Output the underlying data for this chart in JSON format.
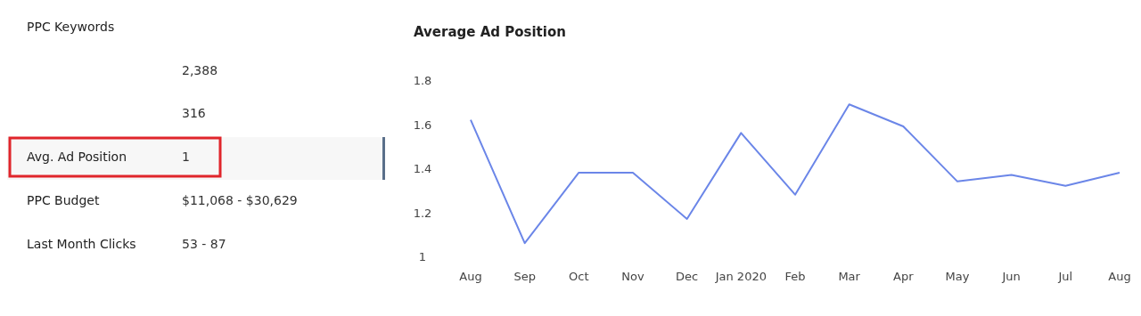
{
  "chart_data": [
    {
      "type": "other",
      "categories": [
        "PPC Keywords",
        null,
        null,
        "Avg. Ad Position",
        "PPC Budget",
        "Last Month Clicks"
      ],
      "value_labels": [
        null,
        "2,388",
        "316",
        "1",
        "$11,068 - $30,629",
        "53 - 87"
      ]
    },
    {
      "type": "line",
      "title": "Average Ad Position",
      "categories": [
        "Aug",
        "Sep",
        "Oct",
        "Nov",
        "Dec",
        "Jan 2020",
        "Feb",
        "Mar",
        "Apr",
        "May",
        "Jun",
        "Jul",
        "Aug"
      ],
      "series": [
        {
          "color": "#6b86e8",
          "values": [
            1.62,
            1.06,
            1.38,
            1.38,
            1.17,
            1.56,
            1.28,
            1.69,
            1.59,
            1.34,
            1.37,
            1.32,
            1.38
          ]
        }
      ],
      "ylim": [
        1,
        1.8
      ],
      "yticks": [
        1,
        1.2,
        1.4,
        1.6,
        1.8
      ],
      "grid": false,
      "marker": "none",
      "line_style": "solid"
    }
  ]
}
